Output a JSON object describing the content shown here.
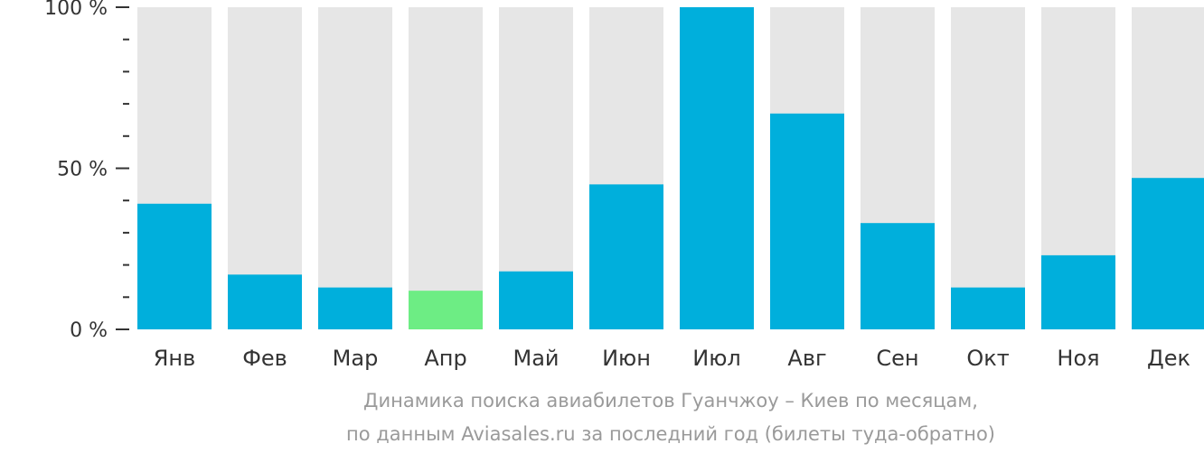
{
  "chart_data": {
    "type": "bar",
    "categories": [
      "Янв",
      "Фев",
      "Мар",
      "Апр",
      "Май",
      "Июн",
      "Июл",
      "Авг",
      "Сен",
      "Окт",
      "Ноя",
      "Дек"
    ],
    "values": [
      39,
      17,
      13,
      12,
      18,
      45,
      100,
      67,
      33,
      13,
      23,
      47
    ],
    "highlight_index": 3,
    "ylim": [
      0,
      100
    ],
    "yticks": [
      {
        "value": 0,
        "label": "0 %"
      },
      {
        "value": 50,
        "label": "50 %"
      },
      {
        "value": 100,
        "label": "100 %"
      }
    ],
    "minor_tick_step": 10,
    "grid": false,
    "colors": {
      "bar": "#00afdc",
      "highlight": "#6ded84",
      "track": "#e6e6e6",
      "axis": "#333333"
    }
  },
  "caption": {
    "line1": "Динамика поиска авиабилетов Гуанчжоу – Киев по месяцам,",
    "line2": "по данным Aviasales.ru за последний год (билеты туда-обратно)"
  }
}
